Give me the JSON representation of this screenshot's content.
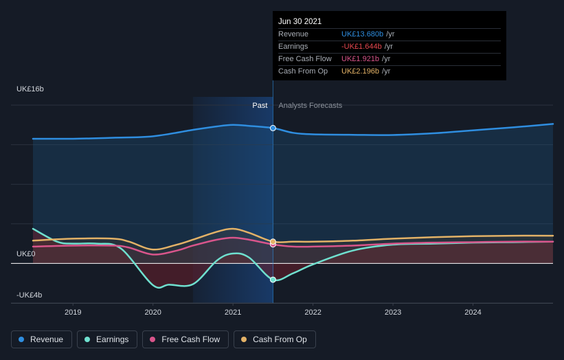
{
  "chart_data": {
    "type": "line",
    "xlim": [
      2018.5,
      2025.0
    ],
    "ylim": [
      -4,
      16
    ],
    "y_tick_labels": [
      "UK£16b",
      "UK£0",
      "-UK£4b"
    ],
    "x_ticks": [
      2019,
      2020,
      2021,
      2022,
      2023,
      2024
    ],
    "x_tick_labels": [
      "2019",
      "2020",
      "2021",
      "2022",
      "2023",
      "2024"
    ],
    "past_label": "Past",
    "forecast_label": "Analysts Forecasts",
    "split_x": 2021.5,
    "highlight_range": [
      2020.5,
      2021.5
    ],
    "series": [
      {
        "name": "Revenue",
        "color": "#2f8ee0",
        "fill": true,
        "x": [
          2018.5,
          2019.0,
          2019.5,
          2020.0,
          2020.5,
          2020.8,
          2021.0,
          2021.2,
          2021.5,
          2021.75,
          2022.0,
          2022.5,
          2023.0,
          2023.5,
          2024.0,
          2024.5,
          2025.0
        ],
        "y": [
          12.6,
          12.6,
          12.7,
          12.85,
          13.5,
          13.85,
          14.0,
          13.9,
          13.68,
          13.2,
          13.05,
          13.0,
          12.98,
          13.15,
          13.45,
          13.75,
          14.1
        ]
      },
      {
        "name": "Earnings",
        "color": "#6fe0cf",
        "fill": true,
        "x": [
          2018.5,
          2018.8,
          2019.0,
          2019.3,
          2019.6,
          2020.0,
          2020.2,
          2020.5,
          2020.8,
          2021.0,
          2021.2,
          2021.5,
          2021.75,
          2022.0,
          2022.5,
          2023.0,
          2023.5,
          2024.0,
          2024.5,
          2025.0
        ],
        "y": [
          3.5,
          2.2,
          2.0,
          2.0,
          1.5,
          -2.2,
          -2.15,
          -2.1,
          0.3,
          1.0,
          0.6,
          -1.644,
          -1.0,
          -0.1,
          1.3,
          1.9,
          2.0,
          2.1,
          2.15,
          2.2
        ]
      },
      {
        "name": "Free Cash Flow",
        "color": "#d9558b",
        "fill": true,
        "x": [
          2018.5,
          2019.0,
          2019.5,
          2019.7,
          2020.0,
          2020.3,
          2020.5,
          2020.8,
          2021.0,
          2021.2,
          2021.5,
          2021.75,
          2022.0,
          2022.5,
          2023.0,
          2023.5,
          2024.0,
          2024.5,
          2025.0
        ],
        "y": [
          1.7,
          1.8,
          1.8,
          1.6,
          0.9,
          1.3,
          1.8,
          2.4,
          2.6,
          2.4,
          1.921,
          1.7,
          1.7,
          1.8,
          2.0,
          2.1,
          2.15,
          2.2,
          2.2
        ]
      },
      {
        "name": "Cash From Op",
        "color": "#e3b267",
        "fill": true,
        "x": [
          2018.5,
          2019.0,
          2019.5,
          2019.7,
          2020.0,
          2020.3,
          2020.5,
          2020.8,
          2021.0,
          2021.2,
          2021.5,
          2021.75,
          2022.0,
          2022.5,
          2023.0,
          2023.5,
          2024.0,
          2024.5,
          2025.0
        ],
        "y": [
          2.3,
          2.5,
          2.5,
          2.2,
          1.4,
          1.9,
          2.4,
          3.2,
          3.5,
          3.1,
          2.196,
          2.2,
          2.2,
          2.3,
          2.5,
          2.65,
          2.75,
          2.8,
          2.8
        ]
      }
    ],
    "tooltip": {
      "date": "Jun 30 2021",
      "rows": [
        {
          "label": "Revenue",
          "value": "UK£13.680b",
          "unit": "/yr",
          "color": "#2f8ee0"
        },
        {
          "label": "Earnings",
          "value": "-UK£1.644b",
          "unit": "/yr",
          "color": "#e8484f"
        },
        {
          "label": "Free Cash Flow",
          "value": "UK£1.921b",
          "unit": "/yr",
          "color": "#d9558b"
        },
        {
          "label": "Cash From Op",
          "value": "UK£2.196b",
          "unit": "/yr",
          "color": "#e3b267"
        }
      ]
    }
  },
  "legend": [
    {
      "label": "Revenue",
      "color": "#2f8ee0"
    },
    {
      "label": "Earnings",
      "color": "#6fe0cf"
    },
    {
      "label": "Free Cash Flow",
      "color": "#d9558b"
    },
    {
      "label": "Cash From Op",
      "color": "#e3b267"
    }
  ]
}
